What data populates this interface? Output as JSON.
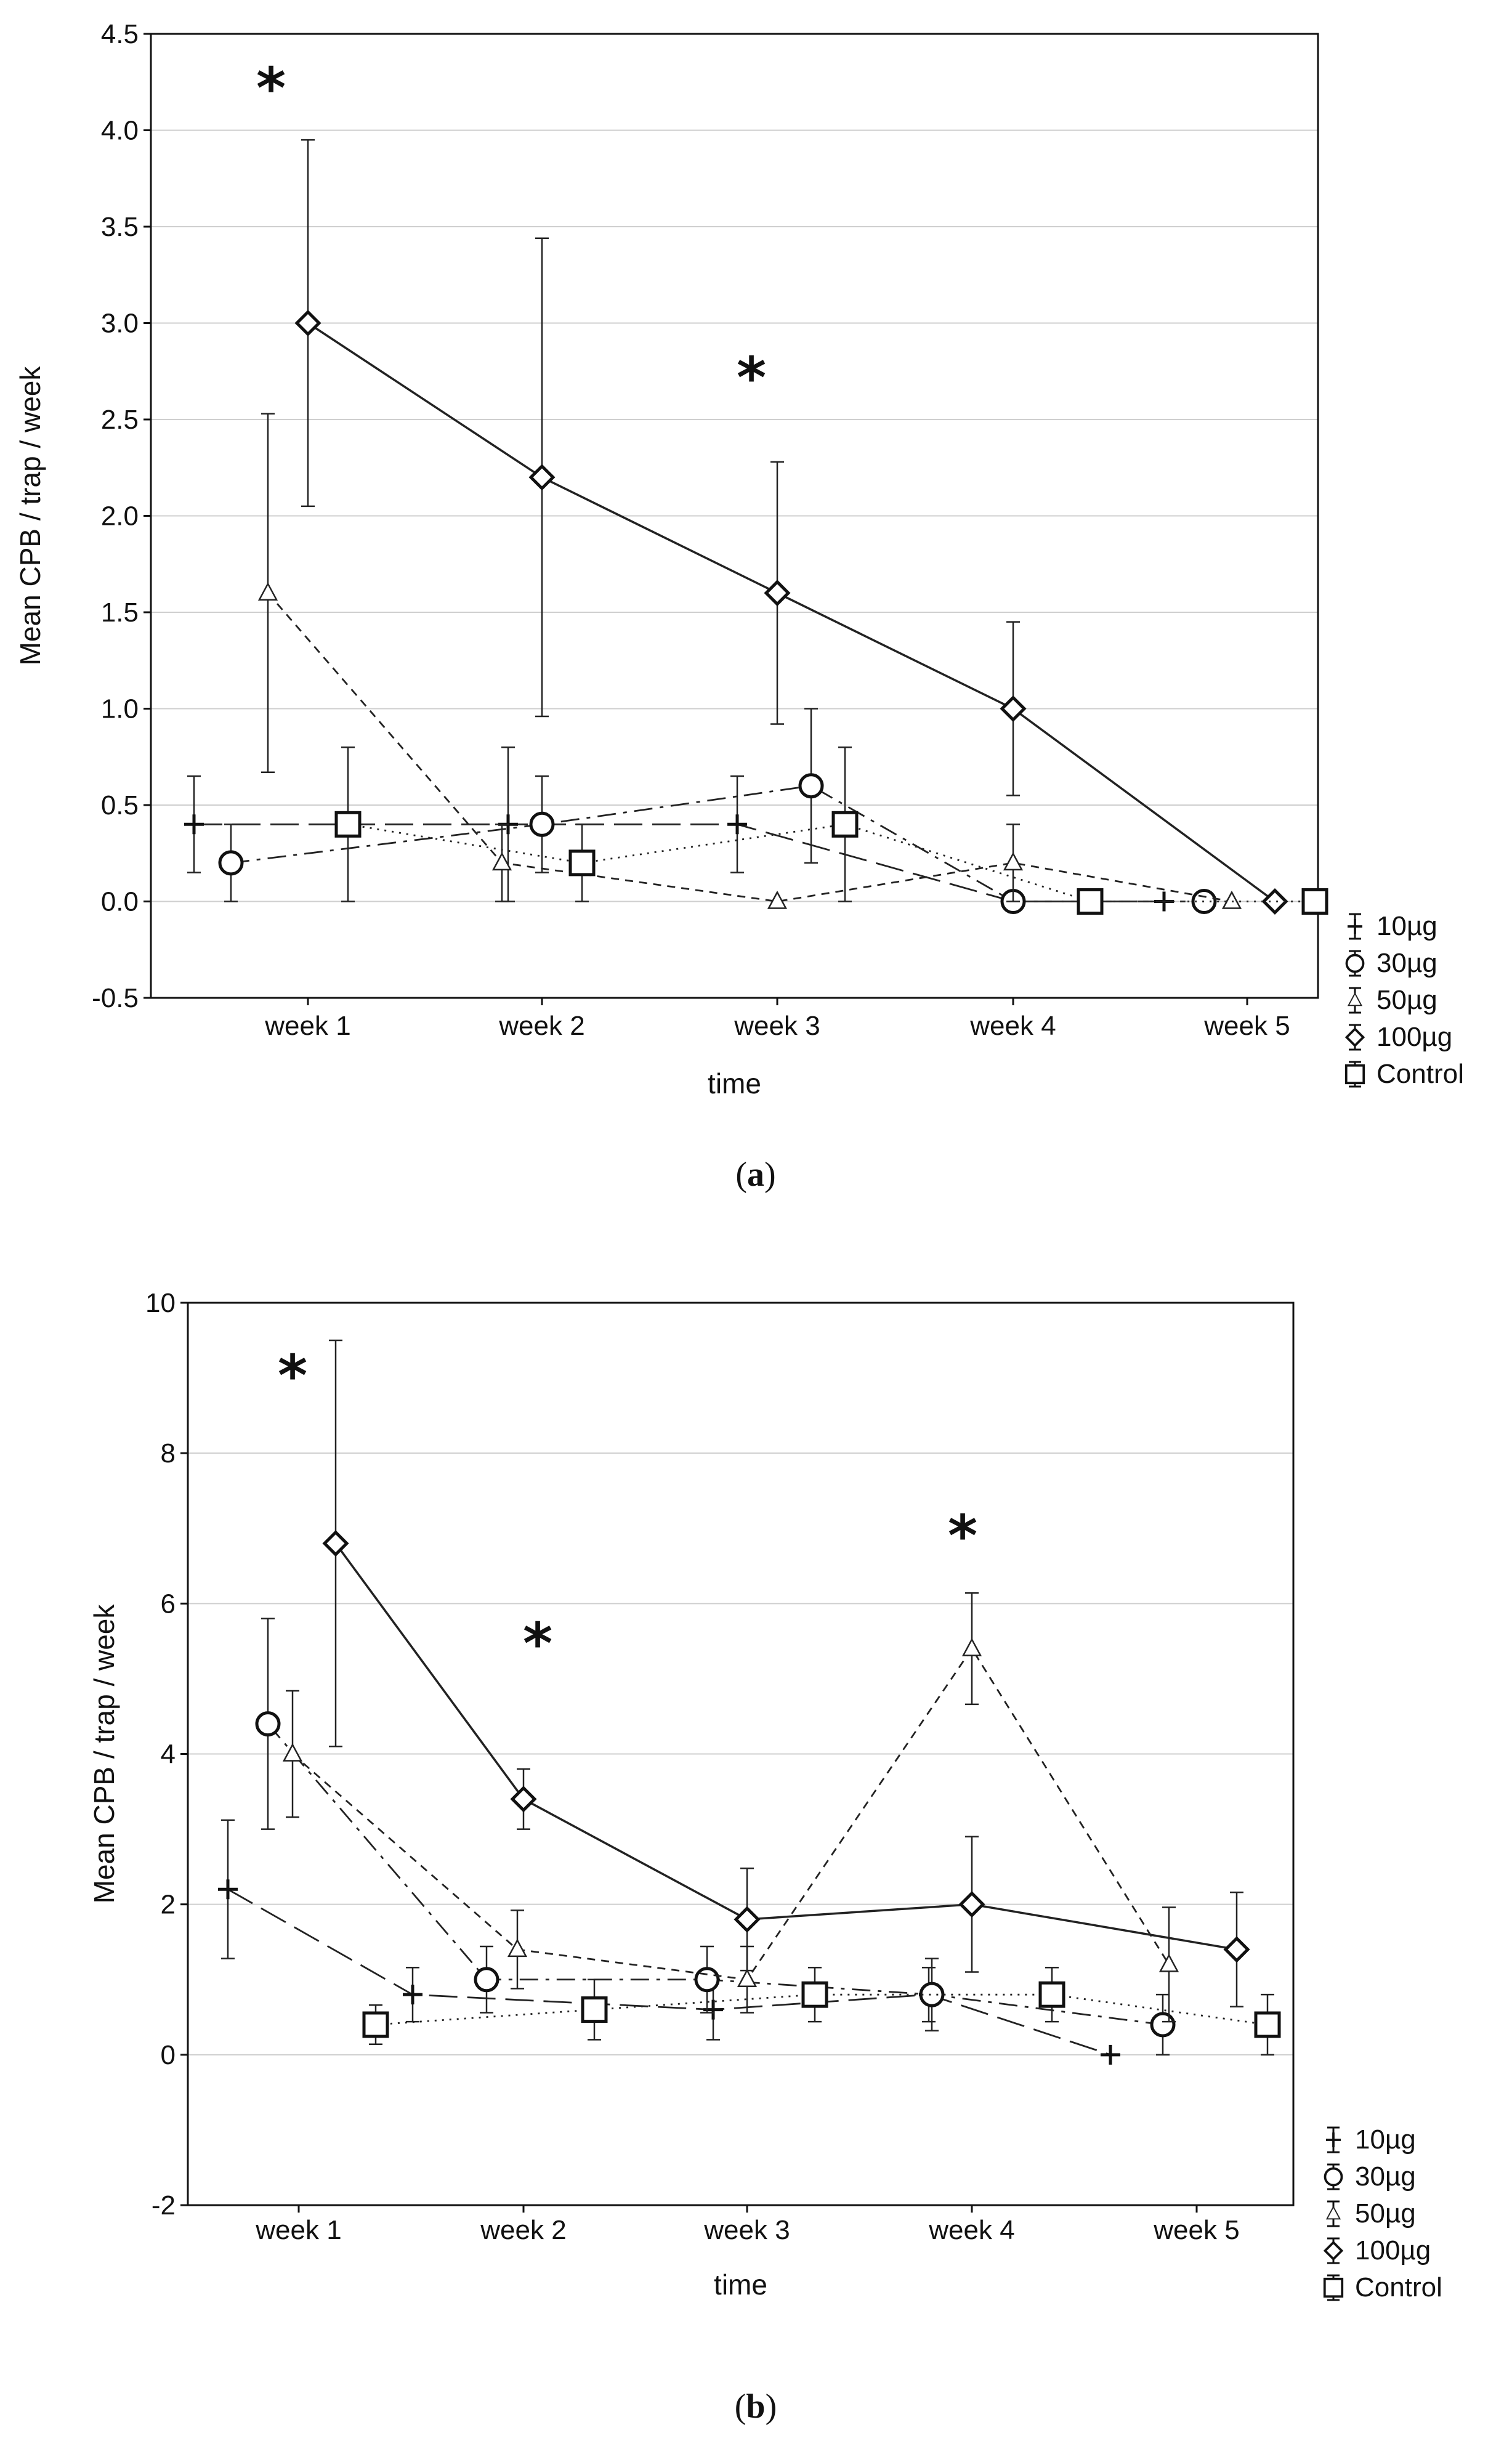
{
  "chart_data": [
    {
      "type": "line",
      "panel_label_pre": "(",
      "panel_label": "a",
      "panel_label_post": ")",
      "xlabel": "time",
      "ylabel": "Mean CPB / trap / week",
      "categories": [
        "week 1",
        "week 2",
        "week 3",
        "week 4",
        "week 5"
      ],
      "ylim": [
        -0.5,
        4.5
      ],
      "yticks": [
        "-0.5",
        "0.0",
        "0.5",
        "1.0",
        "1.5",
        "2.0",
        "2.5",
        "3.0",
        "3.5",
        "4.0",
        "4.5"
      ],
      "grid": true,
      "legend_position": "bottom-right outside",
      "significance_marks": [
        {
          "category": "week 1",
          "text": "*"
        },
        {
          "category": "week 3",
          "text": "*"
        }
      ],
      "series": [
        {
          "name": "10µg",
          "marker": "plus",
          "dash": "long-dash",
          "values": [
            0.4,
            0.4,
            0.4,
            0.0,
            0.0
          ],
          "err_low": [
            0.15,
            0.0,
            0.15,
            0.0,
            0.0
          ],
          "err_high": [
            0.65,
            0.8,
            0.65,
            0.0,
            0.0
          ]
        },
        {
          "name": "30µg",
          "marker": "circle",
          "dash": "dash-dot",
          "values": [
            0.2,
            0.4,
            0.6,
            0.0,
            0.0
          ],
          "err_low": [
            0.0,
            0.15,
            0.2,
            0.0,
            0.0
          ],
          "err_high": [
            0.4,
            0.65,
            1.0,
            0.0,
            0.0
          ]
        },
        {
          "name": "50µg",
          "marker": "triangle",
          "dash": "short-dash",
          "values": [
            1.6,
            0.2,
            0.0,
            0.2,
            0.0
          ],
          "err_low": [
            0.67,
            0.0,
            0.0,
            0.0,
            0.0
          ],
          "err_high": [
            2.53,
            0.4,
            0.0,
            0.4,
            0.0
          ]
        },
        {
          "name": "100µg",
          "marker": "diamond",
          "dash": "solid",
          "values": [
            3.0,
            2.2,
            1.6,
            1.0,
            0.0
          ],
          "err_low": [
            2.05,
            0.96,
            0.92,
            0.55,
            0.0
          ],
          "err_high": [
            3.95,
            3.44,
            2.28,
            1.45,
            0.0
          ]
        },
        {
          "name": "Control",
          "marker": "square",
          "dash": "dotted",
          "values": [
            0.4,
            0.2,
            0.4,
            0.0,
            0.0
          ],
          "err_low": [
            0.0,
            0.0,
            0.0,
            0.0,
            0.0
          ],
          "err_high": [
            0.8,
            0.4,
            0.8,
            0.0,
            0.0
          ]
        }
      ]
    },
    {
      "type": "line",
      "panel_label_pre": "(",
      "panel_label": "b",
      "panel_label_post": ")",
      "xlabel": "time",
      "ylabel": "Mean CPB / trap / week",
      "categories": [
        "week 1",
        "week 2",
        "week 3",
        "week 4",
        "week 5"
      ],
      "ylim": [
        -2,
        10
      ],
      "yticks": [
        "-2",
        "0",
        "2",
        "4",
        "6",
        "8",
        "10"
      ],
      "grid": true,
      "legend_position": "bottom-right outside",
      "significance_marks": [
        {
          "category": "week 1",
          "text": "*"
        },
        {
          "category": "week 2",
          "text": "*"
        },
        {
          "category": "week 4",
          "text": "*"
        }
      ],
      "series": [
        {
          "name": "10µg",
          "marker": "plus",
          "dash": "long-dash",
          "values": [
            2.2,
            0.8,
            0.6,
            0.8,
            0.0
          ],
          "err_low": [
            1.28,
            0.44,
            0.2,
            0.44,
            0.0
          ],
          "err_high": [
            3.12,
            1.16,
            1.0,
            1.16,
            0.0
          ]
        },
        {
          "name": "30µg",
          "marker": "circle",
          "dash": "dash-dot",
          "values": [
            4.4,
            1.0,
            1.0,
            0.8,
            0.4
          ],
          "err_low": [
            3.0,
            0.56,
            0.56,
            0.32,
            0.0
          ],
          "err_high": [
            5.8,
            1.44,
            1.44,
            1.28,
            0.8
          ]
        },
        {
          "name": "50µg",
          "marker": "triangle",
          "dash": "short-dash",
          "values": [
            4.0,
            1.4,
            1.0,
            5.4,
            1.2
          ],
          "err_low": [
            3.16,
            0.88,
            0.56,
            4.66,
            0.44
          ],
          "err_high": [
            4.84,
            1.92,
            1.44,
            6.14,
            1.96
          ]
        },
        {
          "name": "100µg",
          "marker": "diamond",
          "dash": "solid",
          "values": [
            6.8,
            3.4,
            1.8,
            2.0,
            1.4
          ],
          "err_low": [
            4.1,
            3.0,
            1.12,
            1.1,
            0.64
          ],
          "err_high": [
            9.5,
            3.8,
            2.48,
            2.9,
            2.16
          ]
        },
        {
          "name": "Control",
          "marker": "square",
          "dash": "dotted",
          "values": [
            0.4,
            0.6,
            0.8,
            0.8,
            0.4
          ],
          "err_low": [
            0.14,
            0.2,
            0.44,
            0.44,
            0.0
          ],
          "err_high": [
            0.66,
            1.0,
            1.16,
            1.16,
            0.8
          ]
        }
      ]
    }
  ]
}
